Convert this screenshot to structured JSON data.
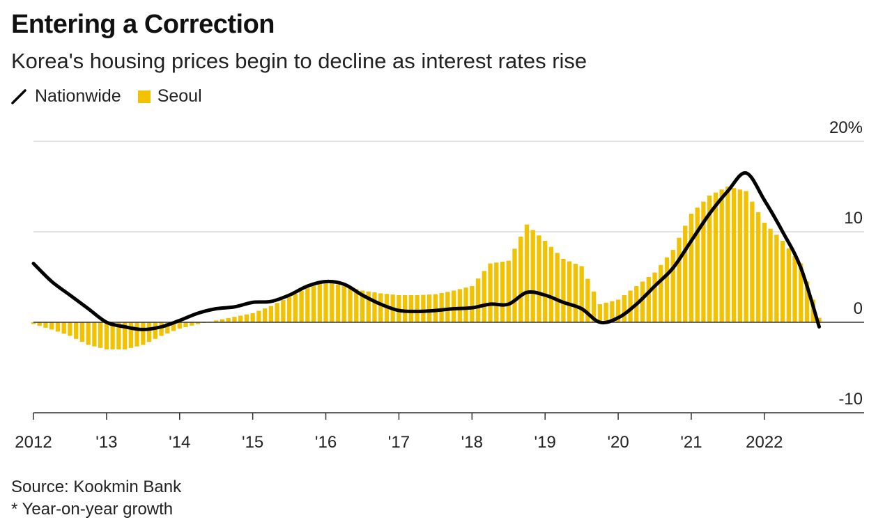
{
  "title": "Entering a Correction",
  "subtitle": "Korea's housing prices begin to decline as interest rates rise",
  "legend": {
    "nationwide": "Nationwide",
    "seoul": "Seoul"
  },
  "source": "Source: Kookmin Bank",
  "note": "* Year-on-year growth",
  "colors": {
    "seoul": "#f2c200",
    "nationwide": "#000000",
    "grid": "#d0d0d0"
  },
  "chart_data": {
    "type": "bar",
    "x_tick_labels": [
      "2012",
      "'13",
      "'14",
      "'15",
      "'16",
      "'17",
      "'18",
      "'19",
      "'20",
      "'21",
      "2022"
    ],
    "x_tick_years": [
      2012,
      2013,
      2014,
      2015,
      2016,
      2017,
      2018,
      2019,
      2020,
      2021,
      2022
    ],
    "y_tick_labels": [
      "20%",
      "10",
      "0",
      "-10"
    ],
    "y_tick_values": [
      20,
      10,
      0,
      -10
    ],
    "ylim": [
      -10,
      20
    ],
    "xlim": [
      2012.0,
      2023.0
    ],
    "grid": true,
    "y_axis_position": "right",
    "series": [
      {
        "name": "Seoul",
        "type": "bar",
        "points": [
          [
            2012.0,
            -0.2
          ],
          [
            2012.25,
            -0.8
          ],
          [
            2012.5,
            -1.5
          ],
          [
            2012.75,
            -2.5
          ],
          [
            2013.0,
            -3.0
          ],
          [
            2013.25,
            -3.0
          ],
          [
            2013.5,
            -2.5
          ],
          [
            2013.75,
            -1.5
          ],
          [
            2014.0,
            -0.7
          ],
          [
            2014.25,
            -0.2
          ],
          [
            2014.5,
            0.2
          ],
          [
            2014.75,
            0.6
          ],
          [
            2015.0,
            1.0
          ],
          [
            2015.25,
            1.8
          ],
          [
            2015.5,
            2.8
          ],
          [
            2015.75,
            3.8
          ],
          [
            2016.0,
            4.5
          ],
          [
            2016.25,
            4.0
          ],
          [
            2016.5,
            3.5
          ],
          [
            2016.75,
            3.2
          ],
          [
            2017.0,
            3.0
          ],
          [
            2017.25,
            3.0
          ],
          [
            2017.5,
            3.1
          ],
          [
            2017.75,
            3.5
          ],
          [
            2018.0,
            4.0
          ],
          [
            2018.25,
            6.5
          ],
          [
            2018.5,
            6.8
          ],
          [
            2018.75,
            10.8
          ],
          [
            2019.0,
            9.0
          ],
          [
            2019.25,
            7.0
          ],
          [
            2019.5,
            6.2
          ],
          [
            2019.75,
            2.0
          ],
          [
            2020.0,
            2.5
          ],
          [
            2020.25,
            4.0
          ],
          [
            2020.5,
            5.5
          ],
          [
            2020.75,
            8.0
          ],
          [
            2021.0,
            12.0
          ],
          [
            2021.25,
            14.0
          ],
          [
            2021.5,
            15.0
          ],
          [
            2021.75,
            14.5
          ],
          [
            2022.0,
            11.0
          ],
          [
            2022.25,
            9.0
          ],
          [
            2022.5,
            6.5
          ],
          [
            2022.75,
            0.5
          ]
        ]
      },
      {
        "name": "Nationwide",
        "type": "line",
        "points": [
          [
            2012.0,
            6.5
          ],
          [
            2012.25,
            4.5
          ],
          [
            2012.5,
            3.0
          ],
          [
            2012.75,
            1.5
          ],
          [
            2013.0,
            0.0
          ],
          [
            2013.25,
            -0.5
          ],
          [
            2013.5,
            -0.8
          ],
          [
            2013.75,
            -0.5
          ],
          [
            2014.0,
            0.2
          ],
          [
            2014.25,
            1.0
          ],
          [
            2014.5,
            1.5
          ],
          [
            2014.75,
            1.7
          ],
          [
            2015.0,
            2.2
          ],
          [
            2015.25,
            2.3
          ],
          [
            2015.5,
            3.0
          ],
          [
            2015.75,
            4.0
          ],
          [
            2016.0,
            4.5
          ],
          [
            2016.25,
            4.2
          ],
          [
            2016.5,
            3.0
          ],
          [
            2016.75,
            2.0
          ],
          [
            2017.0,
            1.3
          ],
          [
            2017.25,
            1.2
          ],
          [
            2017.5,
            1.3
          ],
          [
            2017.75,
            1.5
          ],
          [
            2018.0,
            1.6
          ],
          [
            2018.25,
            2.0
          ],
          [
            2018.5,
            2.0
          ],
          [
            2018.75,
            3.3
          ],
          [
            2019.0,
            3.0
          ],
          [
            2019.25,
            2.2
          ],
          [
            2019.5,
            1.5
          ],
          [
            2019.75,
            0.0
          ],
          [
            2020.0,
            0.5
          ],
          [
            2020.25,
            2.0
          ],
          [
            2020.5,
            4.0
          ],
          [
            2020.75,
            6.0
          ],
          [
            2021.0,
            9.0
          ],
          [
            2021.25,
            12.0
          ],
          [
            2021.5,
            14.5
          ],
          [
            2021.75,
            16.5
          ],
          [
            2022.0,
            13.5
          ],
          [
            2022.25,
            10.0
          ],
          [
            2022.5,
            6.0
          ],
          [
            2022.75,
            -0.5
          ]
        ]
      }
    ]
  }
}
